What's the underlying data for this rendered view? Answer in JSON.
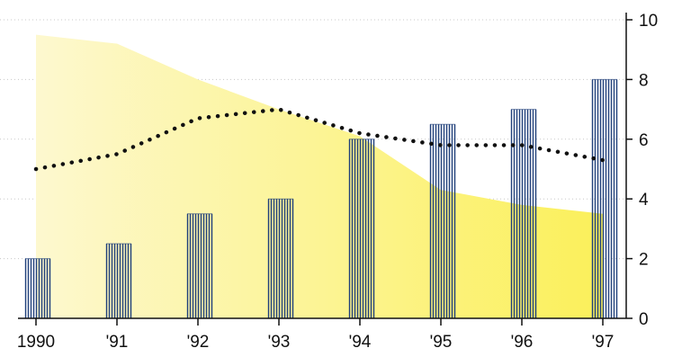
{
  "chart_data": {
    "type": "bar",
    "title": "",
    "xlabel": "",
    "ylabel": "",
    "categories": [
      "1990",
      "'91",
      "'92",
      "'93",
      "'94",
      "'95",
      "'96",
      "'97"
    ],
    "ylim": [
      0,
      10
    ],
    "y_ticks": [
      "0",
      "2",
      "4",
      "6",
      "8",
      "10"
    ],
    "grid": "dotted horizontal",
    "y_axis_side": "right",
    "series": [
      {
        "kind": "area",
        "values": [
          9.5,
          9.2,
          8.0,
          7.0,
          6.1,
          4.3,
          3.8,
          3.5
        ],
        "colors": [
          "#fdf8cf",
          "#fbf05a"
        ]
      },
      {
        "kind": "bar",
        "values": [
          2.0,
          2.5,
          3.5,
          4.0,
          6.0,
          6.5,
          7.0,
          8.0
        ],
        "color": "#1f3f7a"
      },
      {
        "kind": "line",
        "style": "dotted",
        "values": [
          5.0,
          5.5,
          6.7,
          7.0,
          6.2,
          5.8,
          5.8,
          5.3
        ],
        "color": "#111111"
      }
    ]
  }
}
